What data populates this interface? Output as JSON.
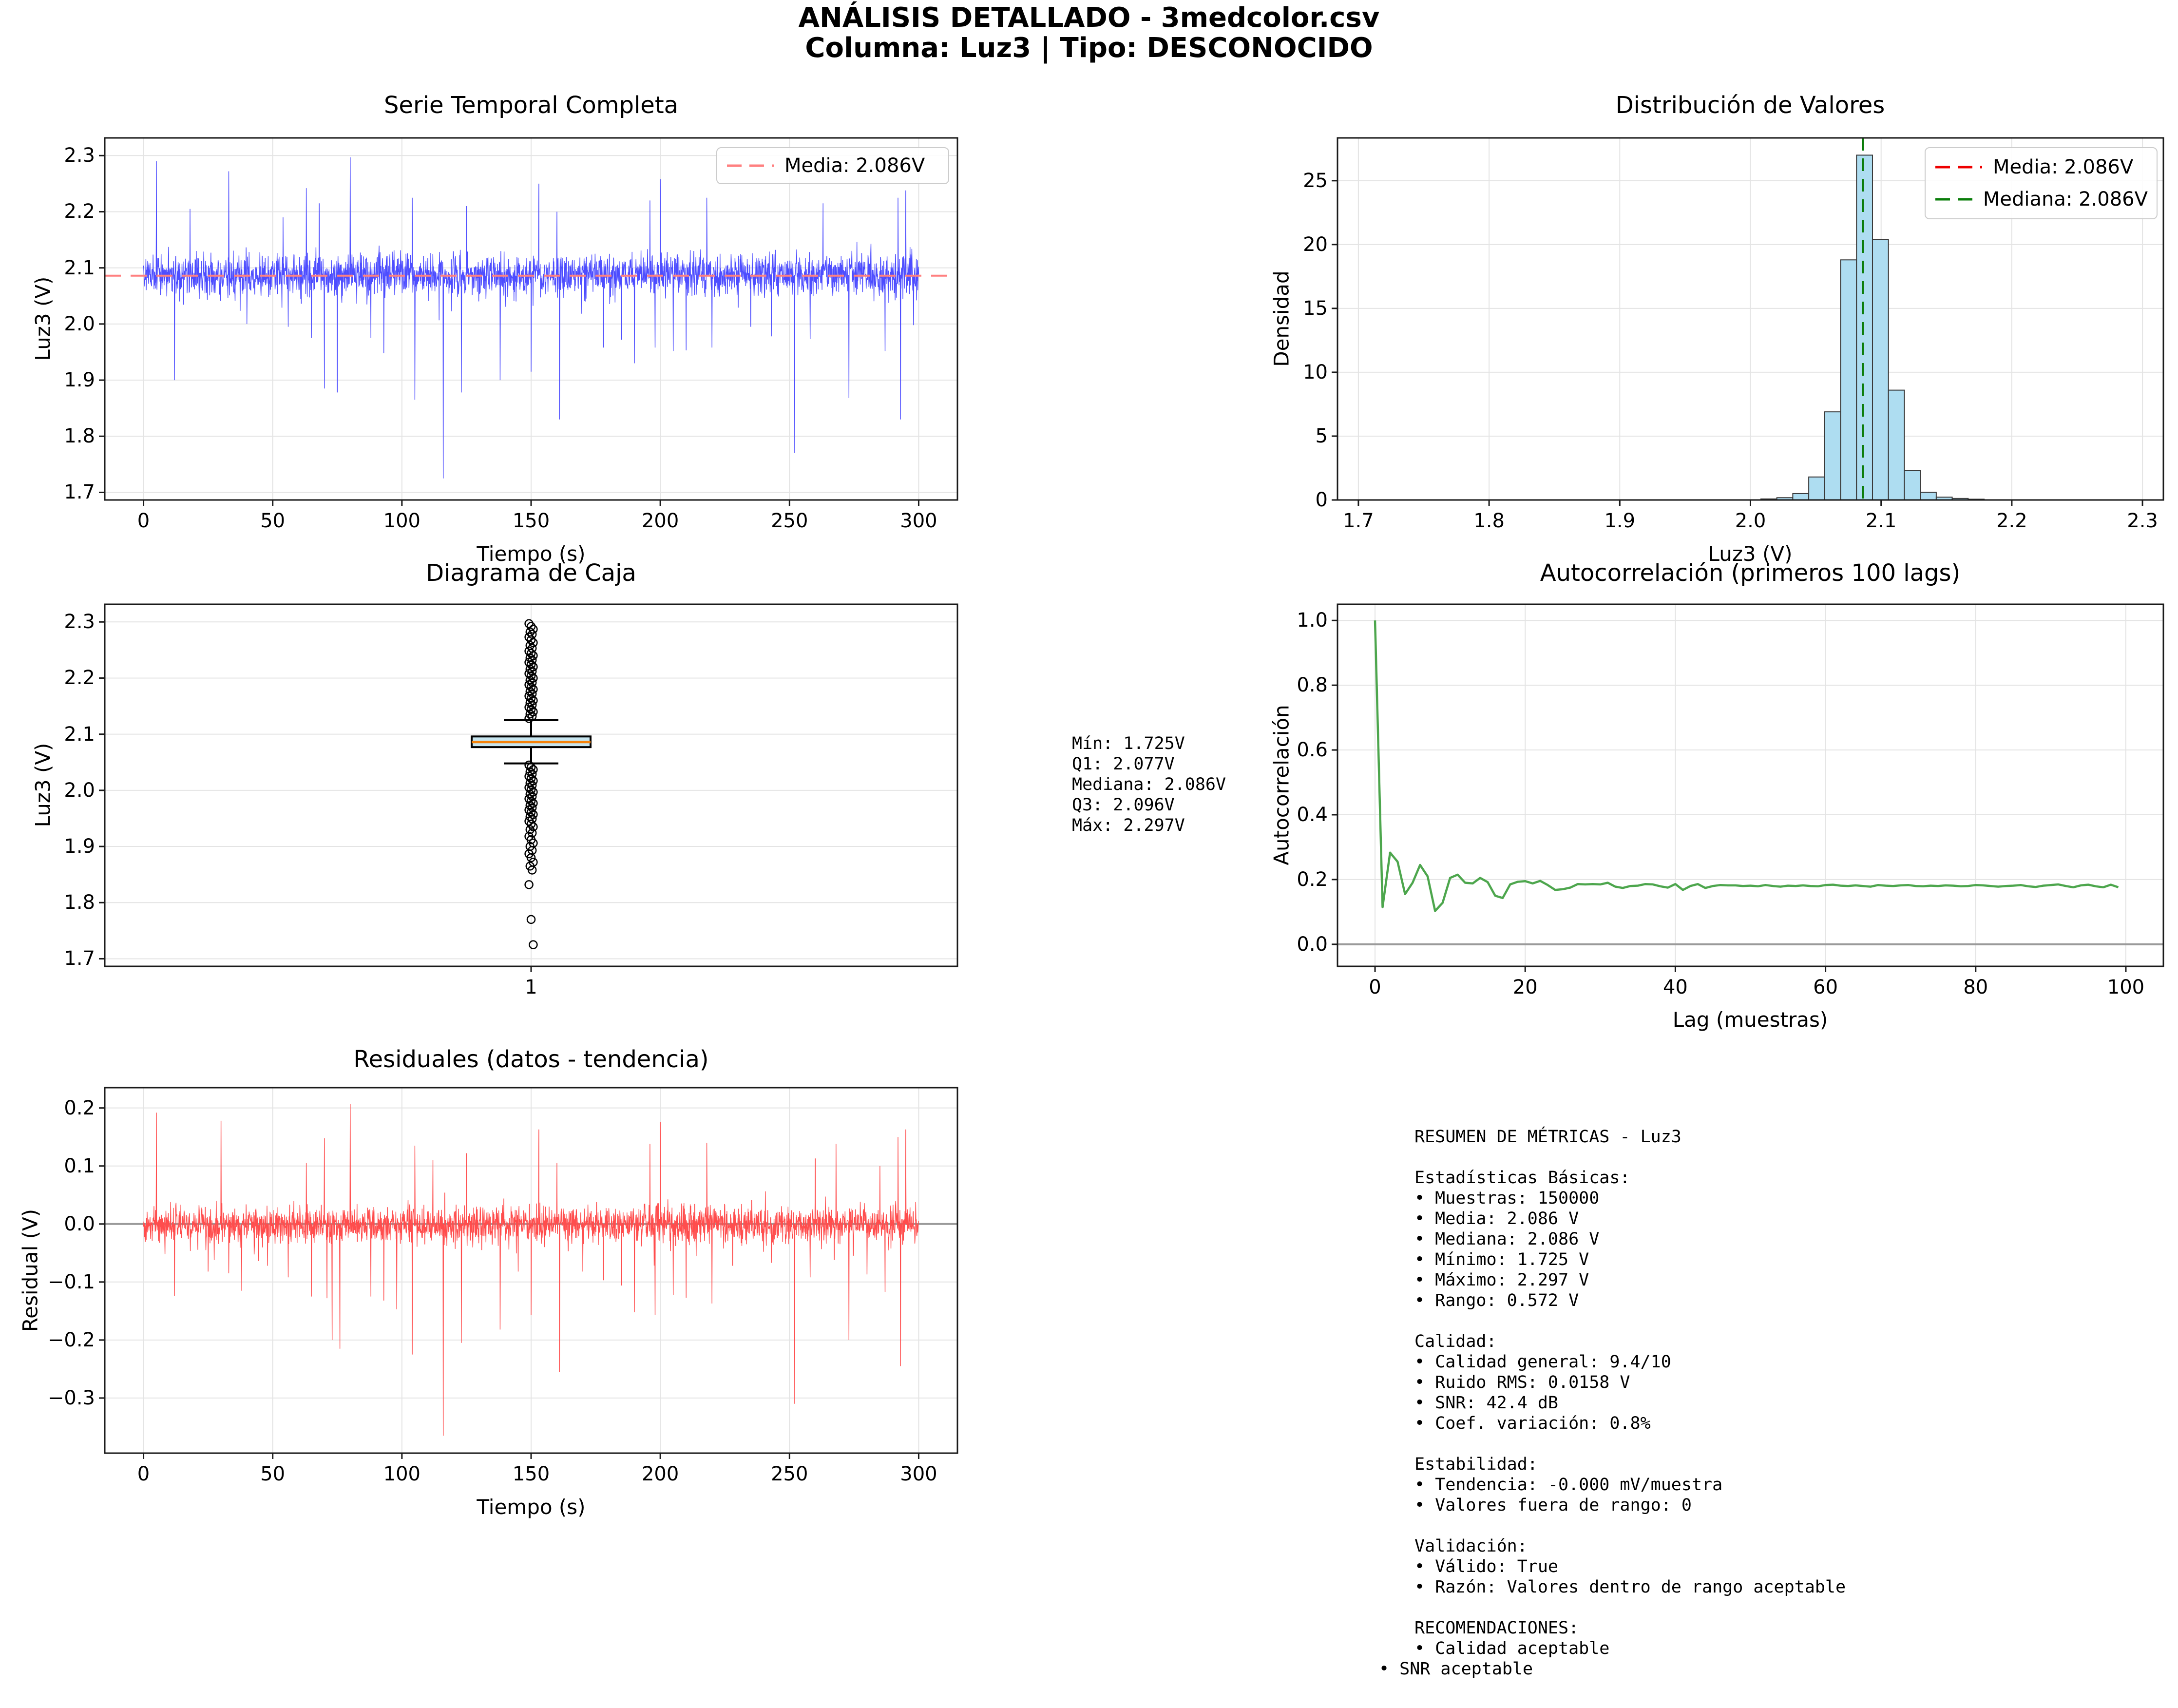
{
  "suptitle": {
    "line1": "ANÁLISIS DETALLADO - 3medcolor.csv",
    "line2": "Columna: Luz3 | Tipo: DESCONOCIDO"
  },
  "colors": {
    "grid": "#e4e4e4",
    "spine": "#1a1a1a",
    "serie_line": "#4d4dff",
    "serie_mean": "#ff8080",
    "hist_fill": "#aeddf1",
    "hist_edge": "#3a3a3a",
    "media_line": "#ee0000",
    "mediana_line": "#0a7d0a",
    "box_fill": "#c6e4ee",
    "box_edge": "#000000",
    "box_median": "#f5820a",
    "autocorr_line": "#4da64d",
    "resid_line": "#ff4d4d",
    "zero_line": "#9a9a9a"
  },
  "chart_data": [
    {
      "id": "serie",
      "type": "line",
      "title": "Serie Temporal Completa",
      "xlabel": "Tiempo (s)",
      "ylabel": "Luz3 (V)",
      "xlim": [
        -15,
        315
      ],
      "ylim": [
        1.6865,
        2.3315
      ],
      "grid": true,
      "xticks": {
        "values": [
          0,
          50,
          100,
          150,
          200,
          250,
          300
        ],
        "labels": [
          "0",
          "50",
          "100",
          "150",
          "200",
          "250",
          "300"
        ]
      },
      "yticks": {
        "values": [
          1.7,
          1.8,
          1.9,
          2.0,
          2.1,
          2.2,
          2.3
        ],
        "labels": [
          "1.7",
          "1.8",
          "1.9",
          "2.0",
          "2.1",
          "2.2",
          "2.3"
        ]
      },
      "mean_line": {
        "value": 2.086,
        "label": "Media: 2.086V"
      },
      "legend": {
        "position": "upper right",
        "entries": [
          {
            "label": "Media: 2.086V",
            "color": "#ff8080",
            "dash": true
          }
        ]
      },
      "noise": {
        "n": 2600,
        "mean": 2.0875,
        "seed": 42,
        "amp": 0.058,
        "down": 0.045,
        "up": 0.036,
        "clip_up": 0.073,
        "clip_down": 0.088,
        "x_max": 300
      },
      "spikes": [
        [
          5,
          2.29
        ],
        [
          12,
          1.9
        ],
        [
          18,
          2.205
        ],
        [
          33,
          2.272
        ],
        [
          40,
          2.0
        ],
        [
          54,
          2.19
        ],
        [
          56,
          1.995
        ],
        [
          63,
          2.242
        ],
        [
          65,
          1.975
        ],
        [
          68,
          2.215
        ],
        [
          70,
          1.885
        ],
        [
          75,
          1.878
        ],
        [
          80,
          2.297
        ],
        [
          88,
          1.975
        ],
        [
          93,
          1.948
        ],
        [
          104,
          2.225
        ],
        [
          105,
          1.865
        ],
        [
          116,
          1.725
        ],
        [
          123,
          1.878
        ],
        [
          125,
          2.21
        ],
        [
          138,
          1.9
        ],
        [
          150,
          1.915
        ],
        [
          153,
          2.25
        ],
        [
          160,
          2.2
        ],
        [
          161,
          1.83
        ],
        [
          178,
          1.958
        ],
        [
          185,
          1.972
        ],
        [
          190,
          1.93
        ],
        [
          196,
          2.22
        ],
        [
          198,
          1.958
        ],
        [
          200,
          2.258
        ],
        [
          205,
          1.952
        ],
        [
          210,
          1.953
        ],
        [
          218,
          2.225
        ],
        [
          220,
          1.958
        ],
        [
          235,
          1.995
        ],
        [
          243,
          1.978
        ],
        [
          252,
          1.77
        ],
        [
          258,
          1.973
        ],
        [
          263,
          2.215
        ],
        [
          273,
          1.868
        ],
        [
          287,
          1.952
        ],
        [
          292,
          2.225
        ],
        [
          293,
          1.83
        ],
        [
          295,
          2.238
        ],
        [
          298,
          1.998
        ]
      ]
    },
    {
      "id": "dist",
      "type": "bar",
      "title": "Distribución de Valores",
      "xlabel": "Luz3 (V)",
      "ylabel": "Densidad",
      "xlim": [
        1.684,
        2.316
      ],
      "ylim": [
        0,
        28.35
      ],
      "grid": true,
      "xticks": {
        "values": [
          1.7,
          1.8,
          1.9,
          2.0,
          2.1,
          2.2,
          2.3
        ],
        "labels": [
          "1.7",
          "1.8",
          "1.9",
          "2.0",
          "2.1",
          "2.2",
          "2.3"
        ]
      },
      "yticks": {
        "values": [
          0,
          5,
          10,
          15,
          20,
          25
        ],
        "labels": [
          "0",
          "5",
          "10",
          "15",
          "20",
          "25"
        ]
      },
      "bin_start": 2.008,
      "bin_width": 0.0122,
      "heights": [
        0.08,
        0.18,
        0.5,
        1.8,
        6.9,
        18.8,
        27.0,
        20.4,
        8.6,
        2.3,
        0.6,
        0.22,
        0.12,
        0.06
      ],
      "media": {
        "value": 2.086,
        "label": "Media: 2.086V"
      },
      "mediana": {
        "value": 2.086,
        "label": "Mediana: 2.086V"
      },
      "legend": {
        "position": "upper right",
        "entries": [
          {
            "label": "Media: 2.086V",
            "color": "#ee0000",
            "dash": true
          },
          {
            "label": "Mediana: 2.086V",
            "color": "#0a7d0a",
            "dash": true
          }
        ]
      }
    },
    {
      "id": "caja",
      "type": "boxplot",
      "title": "Diagrama de Caja",
      "xlabel": "",
      "ylabel": "Luz3 (V)",
      "xlim": [
        0,
        2
      ],
      "ylim": [
        1.6865,
        2.3315
      ],
      "grid": true,
      "xticks": {
        "values": [
          1
        ],
        "labels": [
          "1"
        ]
      },
      "yticks": {
        "values": [
          1.7,
          1.8,
          1.9,
          2.0,
          2.1,
          2.2,
          2.3
        ],
        "labels": [
          "1.7",
          "1.8",
          "1.9",
          "2.0",
          "2.1",
          "2.2",
          "2.3"
        ]
      },
      "q1": 2.077,
      "median": 2.086,
      "q3": 2.096,
      "whisker_low": 2.048,
      "whisker_high": 2.125,
      "outliers_above": [
        2.297,
        2.292,
        2.287,
        2.282,
        2.278,
        2.273,
        2.268,
        2.263,
        2.258,
        2.253,
        2.248,
        2.244,
        2.24,
        2.236,
        2.232,
        2.228,
        2.224,
        2.22,
        2.216,
        2.212,
        2.208,
        2.204,
        2.2,
        2.196,
        2.192,
        2.188,
        2.184,
        2.18,
        2.176,
        2.172,
        2.168,
        2.164,
        2.16,
        2.156,
        2.152,
        2.148,
        2.144,
        2.14,
        2.136,
        2.132,
        2.128
      ],
      "outliers_below": [
        2.045,
        2.041,
        2.037,
        2.033,
        2.029,
        2.025,
        2.021,
        2.017,
        2.013,
        2.009,
        2.005,
        2.001,
        1.997,
        1.993,
        1.989,
        1.985,
        1.981,
        1.977,
        1.973,
        1.969,
        1.965,
        1.961,
        1.957,
        1.953,
        1.949,
        1.945,
        1.94,
        1.935,
        1.93,
        1.924,
        1.918,
        1.912,
        1.906,
        1.9,
        1.893,
        1.887,
        1.88,
        1.872,
        1.865,
        1.858,
        1.832,
        1.77,
        1.725
      ]
    },
    {
      "id": "auto",
      "type": "line",
      "title": "Autocorrelación (primeros 100 lags)",
      "xlabel": "Lag (muestras)",
      "ylabel": "Autocorrelación",
      "xlim": [
        -5,
        105
      ],
      "ylim": [
        -0.068,
        1.05
      ],
      "grid": true,
      "zero_line": true,
      "xticks": {
        "values": [
          0,
          20,
          40,
          60,
          80,
          100
        ],
        "labels": [
          "0",
          "20",
          "40",
          "60",
          "80",
          "100"
        ]
      },
      "yticks": {
        "values": [
          0.0,
          0.2,
          0.4,
          0.6,
          0.8,
          1.0
        ],
        "labels": [
          "0.0",
          "0.2",
          "0.4",
          "0.6",
          "0.8",
          "1.0"
        ]
      },
      "values": [
        1.0,
        0.115,
        0.283,
        0.255,
        0.155,
        0.19,
        0.245,
        0.21,
        0.103,
        0.128,
        0.205,
        0.215,
        0.19,
        0.188,
        0.205,
        0.192,
        0.15,
        0.143,
        0.185,
        0.193,
        0.195,
        0.188,
        0.196,
        0.183,
        0.168,
        0.17,
        0.175,
        0.186,
        0.185,
        0.186,
        0.185,
        0.19,
        0.178,
        0.174,
        0.18,
        0.181,
        0.186,
        0.185,
        0.179,
        0.175,
        0.186,
        0.168,
        0.18,
        0.186,
        0.174,
        0.18,
        0.183,
        0.182,
        0.182,
        0.18,
        0.181,
        0.179,
        0.183,
        0.18,
        0.178,
        0.181,
        0.18,
        0.182,
        0.18,
        0.179,
        0.183,
        0.184,
        0.181,
        0.18,
        0.182,
        0.18,
        0.178,
        0.183,
        0.181,
        0.18,
        0.182,
        0.183,
        0.18,
        0.179,
        0.181,
        0.18,
        0.182,
        0.181,
        0.179,
        0.18,
        0.183,
        0.182,
        0.18,
        0.178,
        0.18,
        0.181,
        0.183,
        0.179,
        0.177,
        0.181,
        0.183,
        0.185,
        0.18,
        0.176,
        0.182,
        0.184,
        0.179,
        0.176,
        0.184,
        0.176
      ]
    },
    {
      "id": "resid",
      "type": "line",
      "title": "Residuales (datos - tendencia)",
      "xlabel": "Tiempo (s)",
      "ylabel": "Residual (V)",
      "xlim": [
        -15,
        315
      ],
      "ylim": [
        -0.395,
        0.235
      ],
      "grid": true,
      "zero_line": true,
      "xticks": {
        "values": [
          0,
          50,
          100,
          150,
          200,
          250,
          300
        ],
        "labels": [
          "0",
          "50",
          "100",
          "150",
          "200",
          "250",
          "300"
        ]
      },
      "yticks": {
        "values": [
          -0.3,
          -0.2,
          -0.1,
          0.0,
          0.1,
          0.2
        ],
        "labels": [
          "−0.3",
          "−0.2",
          "−0.1",
          "0.0",
          "0.1",
          "0.2"
        ]
      },
      "noise": {
        "n": 2600,
        "mean": 0,
        "seed": 1337,
        "amp": 0.052,
        "down": 0.042,
        "up": 0.034,
        "clip_up": 0.062,
        "clip_down": 0.085,
        "x_max": 300
      },
      "spikes": [
        [
          5,
          0.192
        ],
        [
          12,
          -0.124
        ],
        [
          25,
          -0.082
        ],
        [
          30,
          0.178
        ],
        [
          33,
          -0.085
        ],
        [
          38,
          -0.115
        ],
        [
          48,
          -0.072
        ],
        [
          56,
          -0.092
        ],
        [
          63,
          0.105
        ],
        [
          65,
          -0.125
        ],
        [
          70,
          0.148
        ],
        [
          71,
          -0.128
        ],
        [
          73,
          -0.2
        ],
        [
          76,
          -0.215
        ],
        [
          80,
          0.207
        ],
        [
          88,
          -0.125
        ],
        [
          93,
          -0.132
        ],
        [
          98,
          -0.147
        ],
        [
          104,
          -0.225
        ],
        [
          105,
          0.135
        ],
        [
          112,
          0.11
        ],
        [
          116,
          -0.365
        ],
        [
          123,
          -0.205
        ],
        [
          125,
          0.122
        ],
        [
          138,
          -0.182
        ],
        [
          145,
          -0.082
        ],
        [
          150,
          -0.157
        ],
        [
          153,
          0.163
        ],
        [
          160,
          0.105
        ],
        [
          161,
          -0.255
        ],
        [
          170,
          -0.082
        ],
        [
          178,
          -0.097
        ],
        [
          185,
          -0.106
        ],
        [
          190,
          -0.152
        ],
        [
          196,
          0.138
        ],
        [
          198,
          -0.157
        ],
        [
          200,
          0.176
        ],
        [
          205,
          -0.122
        ],
        [
          210,
          -0.127
        ],
        [
          218,
          0.14
        ],
        [
          220,
          -0.137
        ],
        [
          228,
          -0.072
        ],
        [
          243,
          -0.067
        ],
        [
          252,
          -0.31
        ],
        [
          258,
          -0.092
        ],
        [
          260,
          0.113
        ],
        [
          268,
          0.138
        ],
        [
          273,
          -0.2
        ],
        [
          280,
          -0.087
        ],
        [
          285,
          0.1
        ],
        [
          287,
          -0.117
        ],
        [
          292,
          0.15
        ],
        [
          293,
          -0.245
        ],
        [
          295,
          0.163
        ]
      ]
    }
  ],
  "stats_box": {
    "lines": [
      "Mín: 1.725V",
      "Q1: 2.077V",
      "Mediana: 2.086V",
      "Q3: 2.096V",
      "Máx: 2.297V"
    ]
  },
  "resumen": {
    "lines": [
      "RESUMEN DE MÉTRICAS - Luz3",
      "",
      "Estadísticas Básicas:",
      "• Muestras: 150000",
      "• Media: 2.086 V",
      "• Mediana: 2.086 V",
      "• Mínimo: 1.725 V",
      "• Máximo: 2.297 V",
      "• Rango: 0.572 V",
      "",
      "Calidad:",
      "• Calidad general: 9.4/10",
      "• Ruido RMS: 0.0158 V",
      "• SNR: 42.4 dB",
      "• Coef. variación: 0.8%",
      "",
      "Estabilidad:",
      "• Tendencia: -0.000 mV/muestra",
      "• Valores fuera de rango: 0",
      "",
      "Validación:",
      "• Válido: True",
      "• Razón: Valores dentro de rango aceptable",
      "",
      "RECOMENDACIONES:",
      "• Calidad aceptable",
      "• SNR aceptable"
    ],
    "outdent_last": true
  }
}
